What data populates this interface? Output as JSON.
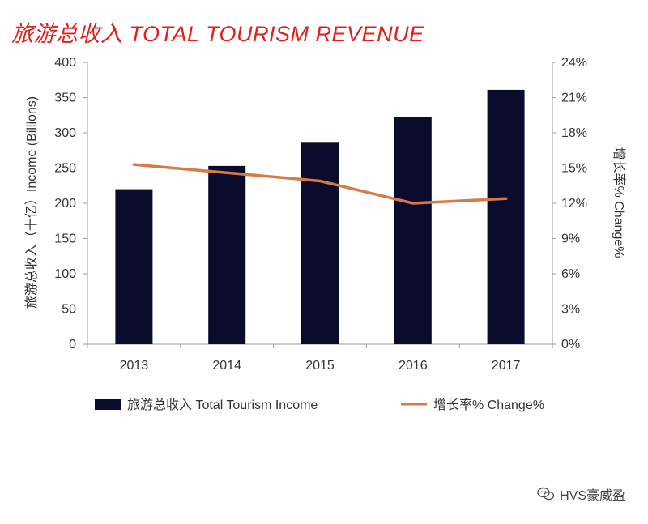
{
  "chart_data": {
    "type": "bar",
    "title": "旅游总收入 TOTAL TOURISM REVENUE",
    "categories": [
      "2013",
      "2014",
      "2015",
      "2016",
      "2017"
    ],
    "series": [
      {
        "name": "旅游总收入 Total Tourism Income",
        "type": "bar",
        "axis": "left",
        "values": [
          220,
          253,
          287,
          322,
          361
        ],
        "color": "#0b0c2b"
      },
      {
        "name": "增长率% Change%",
        "type": "line",
        "axis": "right",
        "values": [
          15.3,
          14.6,
          13.9,
          12.0,
          12.4
        ],
        "color": "#d9794a"
      }
    ],
    "ylabel": "旅游总收入（十亿）Income (Billions)",
    "ylim": [
      0,
      400
    ],
    "yticks": [
      "0",
      "50",
      "100",
      "150",
      "200",
      "250",
      "300",
      "350",
      "400"
    ],
    "y2label": "增长率% Change%",
    "y2lim": [
      0,
      24
    ],
    "y2ticks": [
      "0%",
      "3%",
      "6%",
      "9%",
      "12%",
      "15%",
      "18%",
      "21%",
      "24%"
    ],
    "grid": false,
    "legend": "bottom"
  },
  "watermark": {
    "text": "HVS豪威盈",
    "icon": "wechat-icon"
  }
}
